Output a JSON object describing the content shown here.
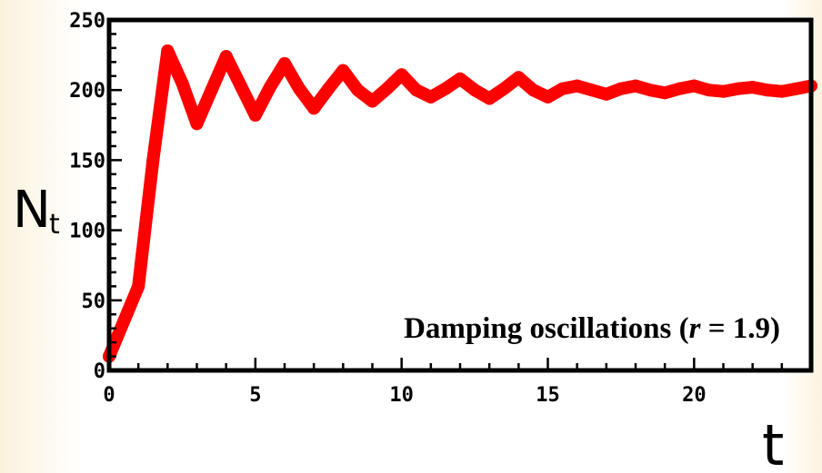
{
  "chart_data": {
    "type": "line",
    "title": "",
    "xlabel": "t",
    "ylabel": "N",
    "ylabel_subscript": "t",
    "xlim": [
      0,
      24
    ],
    "ylim": [
      0,
      250
    ],
    "xticks": [
      0,
      5,
      10,
      15,
      20
    ],
    "xtick_labels": [
      "0",
      "5",
      "10",
      "15",
      "20"
    ],
    "yticks": [
      0,
      50,
      100,
      150,
      200,
      250
    ],
    "ytick_labels": [
      "0",
      "50",
      "100",
      "150",
      "200",
      "250"
    ],
    "grid": false,
    "legend": "none",
    "annotation": {
      "prefix": "Damping oscillations (",
      "var": "r",
      "suffix": " = 1.9)"
    },
    "series": [
      {
        "color": "#ff0000",
        "x": [
          0,
          0.5,
          1,
          1.5,
          2,
          2.5,
          3,
          3.5,
          4,
          4.5,
          5,
          5.5,
          6,
          6.5,
          7,
          7.5,
          8,
          8.5,
          9,
          9.5,
          10,
          10.5,
          11,
          11.5,
          12,
          12.5,
          13,
          13.5,
          14,
          14.5,
          15,
          15.5,
          16,
          16.5,
          17,
          17.5,
          18,
          18.5,
          19,
          19.5,
          20,
          20.5,
          21,
          21.5,
          22,
          22.5,
          23,
          23.5,
          24
        ],
        "values": [
          10,
          35,
          60,
          150,
          228,
          205,
          176,
          200,
          224,
          203,
          182,
          202,
          219,
          201,
          187,
          201,
          214,
          200,
          192,
          201,
          211,
          200,
          195,
          201,
          208,
          200,
          194,
          201,
          209,
          200,
          195,
          201,
          203,
          200,
          197,
          201,
          203,
          200,
          198,
          201,
          203,
          200,
          199,
          201,
          202,
          200,
          199,
          201,
          203
        ]
      }
    ]
  },
  "colors": {
    "line": "#ff0000",
    "axes": "#000000"
  }
}
